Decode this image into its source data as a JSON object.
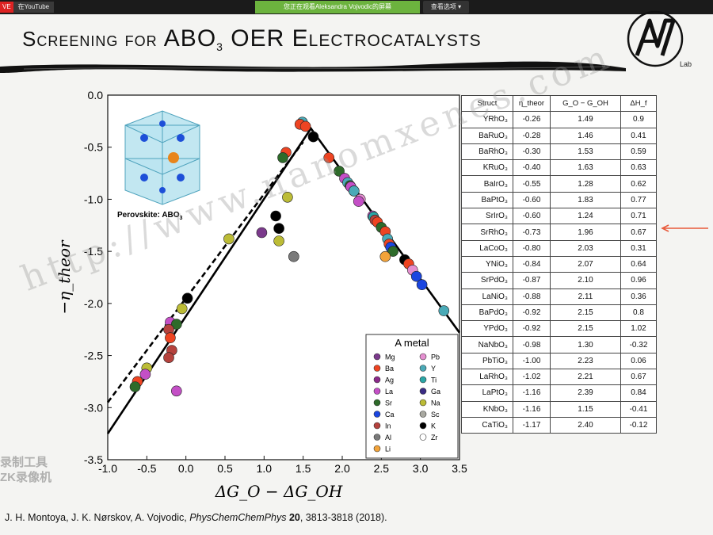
{
  "topbar": {
    "live_badge": "VE",
    "source_label": "在YouTube",
    "notice": "您正在观看Aleksandra Vojvodic的屏幕",
    "view_options": "查看选项 ▾"
  },
  "slide": {
    "title_prefix": "Screening for ",
    "title_abo": "ABO",
    "title_sub": "3",
    "title_mid": " OER ",
    "title_suffix": "Electrocatalysts",
    "logo_lab": "Lab",
    "inset_caption": "Perovskite: ABO",
    "inset_caption_sub": "3",
    "citation_authors": "J. H. Montoya, J. K. Nørskov, A. Vojvodic, ",
    "citation_journal": "PhysChemChemPhys",
    "citation_volume": "20",
    "citation_pages": ", 3813-3818 (2018).",
    "watermark": "http://www.nanomxenes.com",
    "watermark_cn_1": "录制工具",
    "watermark_cn_2": "ZK录像机"
  },
  "table": {
    "headers": [
      "Struct",
      "η_theor",
      "G_O − G_OH",
      "ΔH_f"
    ],
    "rows": [
      {
        "struct": "YRhO₃",
        "eta": "-0.26",
        "g": "1.49",
        "h": "0.9"
      },
      {
        "struct": "BaRuO₃",
        "eta": "-0.28",
        "g": "1.46",
        "h": "0.41"
      },
      {
        "struct": "BaRhO₃",
        "eta": "-0.30",
        "g": "1.53",
        "h": "0.59"
      },
      {
        "struct": "KRuO₃",
        "eta": "-0.40",
        "g": "1.63",
        "h": "0.63"
      },
      {
        "struct": "BaIrO₃",
        "eta": "-0.55",
        "g": "1.28",
        "h": "0.62"
      },
      {
        "struct": "BaPtO₃",
        "eta": "-0.60",
        "g": "1.83",
        "h": "0.77"
      },
      {
        "struct": "SrIrO₃",
        "eta": "-0.60",
        "g": "1.24",
        "h": "0.71"
      },
      {
        "struct": "SrRhO₃",
        "eta": "-0.73",
        "g": "1.96",
        "h": "0.67"
      },
      {
        "struct": "LaCoO₃",
        "eta": "-0.80",
        "g": "2.03",
        "h": "0.31"
      },
      {
        "struct": "YNiO₃",
        "eta": "-0.84",
        "g": "2.07",
        "h": "0.64"
      },
      {
        "struct": "SrPdO₃",
        "eta": "-0.87",
        "g": "2.10",
        "h": "0.96"
      },
      {
        "struct": "LaNiO₃",
        "eta": "-0.88",
        "g": "2.11",
        "h": "0.36"
      },
      {
        "struct": "BaPdO₃",
        "eta": "-0.92",
        "g": "2.15",
        "h": "0.8"
      },
      {
        "struct": "YPdO₃",
        "eta": "-0.92",
        "g": "2.15",
        "h": "1.02"
      },
      {
        "struct": "NaNbO₃",
        "eta": "-0.98",
        "g": "1.30",
        "h": "-0.32"
      },
      {
        "struct": "PbTiO₃",
        "eta": "-1.00",
        "g": "2.23",
        "h": "0.06"
      },
      {
        "struct": "LaRhO₃",
        "eta": "-1.02",
        "g": "2.21",
        "h": "0.67"
      },
      {
        "struct": "LaPtO₃",
        "eta": "-1.16",
        "g": "2.39",
        "h": "0.84"
      },
      {
        "struct": "KNbO₃",
        "eta": "-1.16",
        "g": "1.15",
        "h": "-0.41"
      },
      {
        "struct": "CaTiO₃",
        "eta": "-1.17",
        "g": "2.40",
        "h": "-0.12"
      }
    ]
  },
  "chart_data": {
    "type": "scatter",
    "title": "",
    "xlabel": "ΔG_O − ΔG_OH",
    "ylabel": "−η_theor",
    "xlim": [
      -1.0,
      3.5
    ],
    "ylim": [
      -3.5,
      0.0
    ],
    "xticks": [
      "-1.0",
      "-0.5",
      "0.0",
      "0.5",
      "1.0",
      "1.5",
      "2.0",
      "2.5",
      "3.0",
      "3.5"
    ],
    "yticks": [
      "0.0",
      "-0.5",
      "-1.0",
      "-1.5",
      "-2.0",
      "-2.5",
      "-3.0",
      "-3.5"
    ],
    "grid": false,
    "legend_title": "A metal",
    "legend_placement": "lower-right",
    "legend": [
      {
        "name": "Mg",
        "color": "#7b3a8c"
      },
      {
        "name": "Pb",
        "color": "#e58fd0"
      },
      {
        "name": "Ba",
        "color": "#ee4422"
      },
      {
        "name": "Y",
        "color": "#4aaab7"
      },
      {
        "name": "Ag",
        "color": "#8b2a8a"
      },
      {
        "name": "Ti",
        "color": "#2aa6a6"
      },
      {
        "name": "La",
        "color": "#c44fc6"
      },
      {
        "name": "Ga",
        "color": "#3a2c84"
      },
      {
        "name": "Sr",
        "color": "#2e6b2a"
      },
      {
        "name": "Na",
        "color": "#bcbc36"
      },
      {
        "name": "Ca",
        "color": "#1b46e0"
      },
      {
        "name": "Sc",
        "color": "#a8a8a0"
      },
      {
        "name": "In",
        "color": "#b5423d"
      },
      {
        "name": "K",
        "color": "#000000"
      },
      {
        "name": "Al",
        "color": "#7a7a7a"
      },
      {
        "name": "Zr",
        "color": "#ffffff"
      },
      {
        "name": "Li",
        "color": "#f2a33a"
      }
    ],
    "lines": [
      {
        "style": "solid",
        "points": [
          [
            -1.0,
            -3.25
          ],
          [
            1.6,
            -0.32
          ],
          [
            3.5,
            -2.28
          ]
        ]
      },
      {
        "style": "dashed",
        "points": [
          [
            -1.0,
            -2.95
          ],
          [
            1.5,
            -0.45
          ]
        ]
      }
    ],
    "points": [
      {
        "x": 1.49,
        "y": -0.26,
        "color": "#4aaab7"
      },
      {
        "x": 1.46,
        "y": -0.28,
        "color": "#ee4422"
      },
      {
        "x": 1.53,
        "y": -0.3,
        "color": "#ee4422"
      },
      {
        "x": 1.63,
        "y": -0.4,
        "color": "#000000"
      },
      {
        "x": 1.28,
        "y": -0.55,
        "color": "#ee4422"
      },
      {
        "x": 1.83,
        "y": -0.6,
        "color": "#ee4422"
      },
      {
        "x": 1.24,
        "y": -0.6,
        "color": "#2e6b2a"
      },
      {
        "x": 1.96,
        "y": -0.73,
        "color": "#2e6b2a"
      },
      {
        "x": 2.03,
        "y": -0.8,
        "color": "#c44fc6"
      },
      {
        "x": 2.07,
        "y": -0.84,
        "color": "#4aaab7"
      },
      {
        "x": 2.1,
        "y": -0.87,
        "color": "#2e6b2a"
      },
      {
        "x": 2.11,
        "y": -0.88,
        "color": "#c44fc6"
      },
      {
        "x": 2.15,
        "y": -0.92,
        "color": "#ee4422"
      },
      {
        "x": 2.15,
        "y": -0.92,
        "color": "#4aaab7"
      },
      {
        "x": 1.3,
        "y": -0.98,
        "color": "#bcbc36"
      },
      {
        "x": 2.23,
        "y": -1.0,
        "color": "#e58fd0"
      },
      {
        "x": 2.21,
        "y": -1.02,
        "color": "#c44fc6"
      },
      {
        "x": 2.39,
        "y": -1.16,
        "color": "#c44fc6"
      },
      {
        "x": 1.15,
        "y": -1.16,
        "color": "#000000"
      },
      {
        "x": 2.4,
        "y": -1.17,
        "color": "#2aa6a6"
      },
      {
        "x": 2.42,
        "y": -1.2,
        "color": "#b5423d"
      },
      {
        "x": 2.45,
        "y": -1.22,
        "color": "#ee4422"
      },
      {
        "x": 2.5,
        "y": -1.27,
        "color": "#2e6b2a"
      },
      {
        "x": 2.55,
        "y": -1.31,
        "color": "#ee4422"
      },
      {
        "x": 1.19,
        "y": -1.28,
        "color": "#000000"
      },
      {
        "x": 0.97,
        "y": -1.32,
        "color": "#7b3a8c"
      },
      {
        "x": 2.58,
        "y": -1.38,
        "color": "#4aaab7"
      },
      {
        "x": 1.19,
        "y": -1.4,
        "color": "#bcbc36"
      },
      {
        "x": 0.55,
        "y": -1.38,
        "color": "#bcbc36"
      },
      {
        "x": 2.6,
        "y": -1.43,
        "color": "#ee4422"
      },
      {
        "x": 2.62,
        "y": -1.46,
        "color": "#1b46e0"
      },
      {
        "x": 2.65,
        "y": -1.5,
        "color": "#2e6b2a"
      },
      {
        "x": 2.55,
        "y": -1.55,
        "color": "#f2a33a"
      },
      {
        "x": 1.38,
        "y": -1.55,
        "color": "#7a7a7a"
      },
      {
        "x": 2.8,
        "y": -1.58,
        "color": "#000000"
      },
      {
        "x": 2.85,
        "y": -1.62,
        "color": "#ee4422"
      },
      {
        "x": 2.9,
        "y": -1.68,
        "color": "#e58fd0"
      },
      {
        "x": 2.95,
        "y": -1.74,
        "color": "#1b46e0"
      },
      {
        "x": 3.02,
        "y": -1.82,
        "color": "#1b46e0"
      },
      {
        "x": 3.3,
        "y": -2.07,
        "color": "#4aaab7"
      },
      {
        "x": 0.02,
        "y": -1.95,
        "color": "#000000"
      },
      {
        "x": -0.05,
        "y": -2.05,
        "color": "#bcbc36"
      },
      {
        "x": -0.2,
        "y": -2.18,
        "color": "#c44fc6"
      },
      {
        "x": -0.12,
        "y": -2.2,
        "color": "#2e6b2a"
      },
      {
        "x": -0.22,
        "y": -2.25,
        "color": "#b5423d"
      },
      {
        "x": -0.2,
        "y": -2.33,
        "color": "#ee4422"
      },
      {
        "x": -0.18,
        "y": -2.45,
        "color": "#b5423d"
      },
      {
        "x": -0.22,
        "y": -2.52,
        "color": "#b5423d"
      },
      {
        "x": -0.5,
        "y": -2.62,
        "color": "#bcbc36"
      },
      {
        "x": -0.52,
        "y": -2.68,
        "color": "#c44fc6"
      },
      {
        "x": -0.62,
        "y": -2.75,
        "color": "#ee4422"
      },
      {
        "x": -0.65,
        "y": -2.8,
        "color": "#2e6b2a"
      },
      {
        "x": -0.12,
        "y": -2.84,
        "color": "#c44fc6"
      }
    ]
  }
}
